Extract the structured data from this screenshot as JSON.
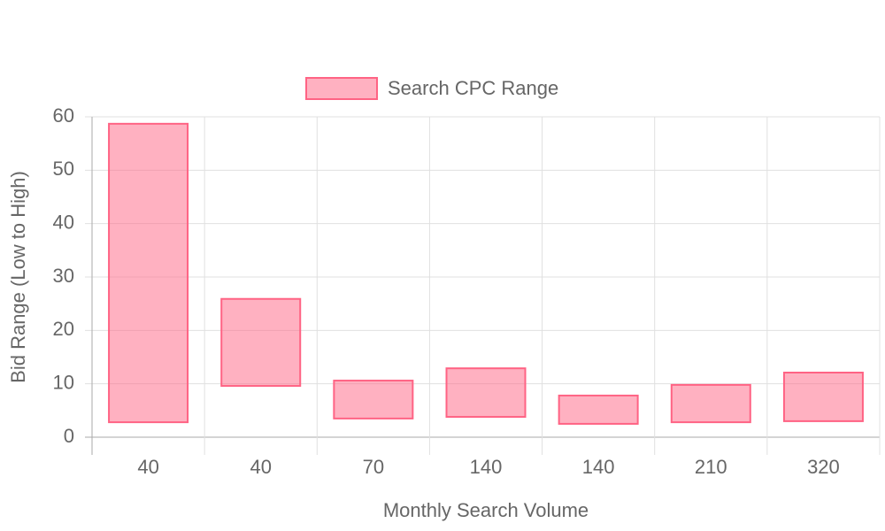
{
  "chart_data": {
    "type": "floating-bar",
    "x_label": "Monthly Search Volume",
    "y_label": "Bid Range (Low to High)",
    "categories": [
      "40",
      "40",
      "70",
      "140",
      "140",
      "210",
      "320"
    ],
    "series": [
      {
        "name": "Search CPC Range",
        "color": "#ff6384",
        "values": [
          [
            2.8,
            58.7
          ],
          [
            9.6,
            25.9
          ],
          [
            3.5,
            10.6
          ],
          [
            3.8,
            12.9
          ],
          [
            2.5,
            7.8
          ],
          [
            2.8,
            9.8
          ],
          [
            3.0,
            12.1
          ]
        ]
      }
    ],
    "ylim": [
      0,
      60
    ],
    "yticks": [
      0,
      10,
      20,
      30,
      40,
      50,
      60
    ],
    "grid": true,
    "legend": "top"
  }
}
